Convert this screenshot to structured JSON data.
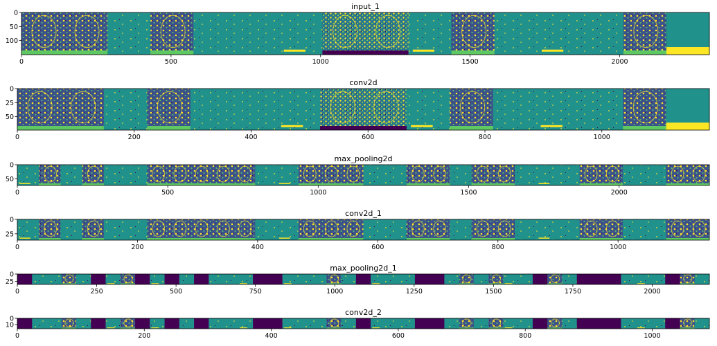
{
  "chart_data": [
    {
      "type": "heatmap",
      "title": "input_1",
      "xticks": [
        0,
        500,
        1000,
        1500,
        2000
      ],
      "yticks": [
        0,
        50,
        100
      ],
      "xlim": [
        0,
        2300
      ],
      "ylim": [
        150,
        0
      ],
      "tiles": [
        "face",
        "face",
        "sparse",
        "face",
        "sparse",
        "sparse",
        "sparse",
        "face-bright",
        "face-bright",
        "sparse",
        "face",
        "sparse",
        "sparse",
        "sparse",
        "face",
        "blank-yellow"
      ]
    },
    {
      "type": "heatmap",
      "title": "conv2d",
      "xticks": [
        0,
        200,
        400,
        600,
        800,
        1000
      ],
      "yticks": [
        0,
        25,
        50
      ],
      "xlim": [
        0,
        1184
      ],
      "ylim": [
        74,
        0
      ],
      "tiles": [
        "face",
        "face",
        "sparse",
        "face",
        "sparse",
        "sparse",
        "sparse",
        "face-bright",
        "face-bright",
        "sparse",
        "face",
        "sparse",
        "sparse",
        "sparse",
        "face",
        "blank-yellow"
      ]
    },
    {
      "type": "heatmap",
      "title": "max_pooling2d",
      "xticks": [
        0,
        500,
        1000,
        1500,
        2000
      ],
      "yticks": [
        0,
        50
      ],
      "xlim": [
        0,
        2300
      ],
      "ylim": [
        74,
        0
      ],
      "tiles": [
        "sparse",
        "face",
        "sparse",
        "face",
        "sparse",
        "sparse",
        "face",
        "face",
        "face",
        "face",
        "face",
        "sparse",
        "sparse",
        "face",
        "face",
        "face",
        "sparse",
        "sparse",
        "face",
        "face",
        "sparse",
        "face",
        "face",
        "sparse",
        "sparse",
        "sparse",
        "face",
        "face",
        "sparse",
        "sparse",
        "face",
        "face"
      ]
    },
    {
      "type": "heatmap",
      "title": "conv2d_1",
      "xticks": [
        0,
        200,
        400,
        600,
        800,
        1000
      ],
      "yticks": [
        0,
        25
      ],
      "xlim": [
        0,
        1152
      ],
      "ylim": [
        36,
        0
      ],
      "tiles": [
        "sparse",
        "face",
        "sparse",
        "face",
        "sparse",
        "sparse",
        "face",
        "face",
        "face",
        "face",
        "face",
        "sparse",
        "sparse",
        "face",
        "face",
        "face",
        "sparse",
        "sparse",
        "face",
        "face",
        "sparse",
        "face",
        "face",
        "sparse",
        "sparse",
        "sparse",
        "face",
        "face",
        "sparse",
        "sparse",
        "face",
        "face"
      ]
    },
    {
      "type": "heatmap",
      "title": "max_pooling2d_1",
      "xticks": [
        0,
        250,
        500,
        750,
        1000,
        1250,
        1500,
        1750,
        2000
      ],
      "yticks": [
        0,
        25
      ],
      "xlim": [
        0,
        2180
      ],
      "ylim": [
        36,
        0
      ],
      "tiles": [
        "dark",
        "sparse",
        "sparse",
        "face",
        "sparse",
        "dark",
        "sparse",
        "face",
        "dark",
        "sparse",
        "dark",
        "sparse",
        "dark",
        "sparse",
        "sparse",
        "sparse",
        "dark",
        "dark",
        "sparse",
        "sparse",
        "sparse",
        "face",
        "sparse",
        "dark",
        "sparse",
        "sparse",
        "sparse",
        "dark",
        "dark",
        "sparse",
        "face",
        "sparse",
        "face",
        "sparse",
        "sparse",
        "dark",
        "face",
        "sparse",
        "dark",
        "dark",
        "dark",
        "sparse",
        "sparse",
        "sparse",
        "dark",
        "face",
        "sparse"
      ]
    },
    {
      "type": "heatmap",
      "title": "conv2d_2",
      "xticks": [
        0,
        200,
        400,
        600,
        800,
        1000
      ],
      "yticks": [
        0,
        10
      ],
      "xlim": [
        0,
        1090
      ],
      "ylim": [
        17,
        0
      ],
      "tiles": [
        "dark",
        "sparse",
        "sparse",
        "face",
        "sparse",
        "dark",
        "sparse",
        "face",
        "dark",
        "sparse",
        "dark",
        "sparse",
        "dark",
        "sparse",
        "sparse",
        "sparse",
        "dark",
        "dark",
        "sparse",
        "sparse",
        "sparse",
        "face",
        "sparse",
        "dark",
        "sparse",
        "sparse",
        "sparse",
        "dark",
        "dark",
        "sparse",
        "face",
        "sparse",
        "face",
        "sparse",
        "sparse",
        "dark",
        "face",
        "sparse",
        "dark",
        "dark",
        "dark",
        "sparse",
        "sparse",
        "sparse",
        "dark",
        "face",
        "sparse"
      ]
    }
  ],
  "colors": {
    "base": "#21918c",
    "yellow": "#fde725",
    "dark": "#440154",
    "blue": "#3b528b",
    "green": "#5ec962"
  }
}
